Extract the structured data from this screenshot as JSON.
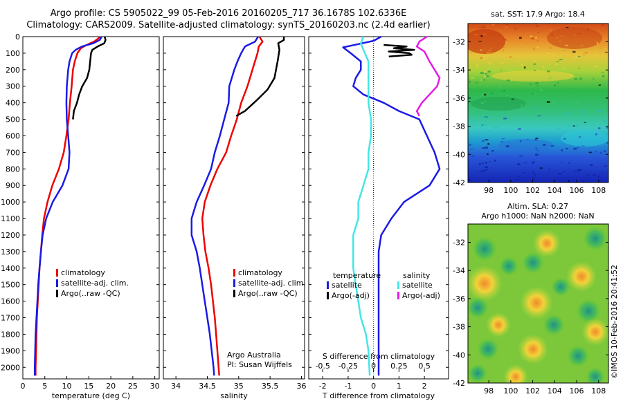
{
  "header": {
    "line1": "Argo profile: CS 5905022_99 05-Feb-2016 20160205_717 36.1678S 102.6336E",
    "line2": "Climatology: CARS2009. Satellite-adjusted climatology: synTS_20160203.nc (2.4d earlier)"
  },
  "colors": {
    "climatology": "#ee0000",
    "satellite": "#1a1ae6",
    "argo": "#000000",
    "salinity_diff": "#44e6e6",
    "salinity_argo_diff": "#e61ae6"
  },
  "chart_data": [
    {
      "id": "temperature",
      "type": "line",
      "xlabel": "temperature (deg C)",
      "xlim": [
        0,
        31
      ],
      "xticks": [
        "0",
        "5",
        "10",
        "15",
        "20",
        "25",
        "30"
      ],
      "ylim": [
        0,
        2070
      ],
      "yticks": [
        "0",
        "100",
        "200",
        "300",
        "400",
        "500",
        "600",
        "700",
        "800",
        "900",
        "1000",
        "1100",
        "1200",
        "1300",
        "1400",
        "1500",
        "1600",
        "1700",
        "1800",
        "1900",
        "2000"
      ],
      "legend": [
        "climatology",
        "satellite-adj. clim.",
        "Argo(..raw -QC)"
      ],
      "series": [
        {
          "name": "climatology",
          "color": "#ee0000",
          "points": [
            [
              17.6,
              0
            ],
            [
              17.2,
              10
            ],
            [
              16.2,
              30
            ],
            [
              14.5,
              50
            ],
            [
              13.2,
              70
            ],
            [
              12.4,
              100
            ],
            [
              11.8,
              150
            ],
            [
              11.4,
              200
            ],
            [
              11.1,
              300
            ],
            [
              10.7,
              400
            ],
            [
              10.4,
              500
            ],
            [
              9.9,
              600
            ],
            [
              9.3,
              700
            ],
            [
              8.2,
              800
            ],
            [
              6.7,
              900
            ],
            [
              5.6,
              1000
            ],
            [
              4.8,
              1100
            ],
            [
              4.4,
              1200
            ],
            [
              4.1,
              1300
            ],
            [
              3.8,
              1400
            ],
            [
              3.6,
              1500
            ],
            [
              3.4,
              1600
            ],
            [
              3.2,
              1700
            ],
            [
              3.1,
              1800
            ],
            [
              3.0,
              1900
            ],
            [
              2.9,
              2000
            ],
            [
              2.9,
              2050
            ]
          ]
        },
        {
          "name": "satellite-adj. clim.",
          "color": "#1a1ae6",
          "points": [
            [
              17.9,
              0
            ],
            [
              17.5,
              20
            ],
            [
              16.0,
              40
            ],
            [
              13.4,
              60
            ],
            [
              12.0,
              80
            ],
            [
              11.2,
              100
            ],
            [
              10.6,
              150
            ],
            [
              10.3,
              200
            ],
            [
              10.0,
              300
            ],
            [
              9.9,
              400
            ],
            [
              10.0,
              500
            ],
            [
              10.3,
              600
            ],
            [
              10.6,
              700
            ],
            [
              10.4,
              800
            ],
            [
              9.0,
              900
            ],
            [
              6.8,
              1000
            ],
            [
              5.3,
              1100
            ],
            [
              4.5,
              1200
            ],
            [
              4.1,
              1300
            ],
            [
              3.8,
              1400
            ],
            [
              3.5,
              1500
            ],
            [
              3.3,
              1600
            ],
            [
              3.1,
              1700
            ],
            [
              2.9,
              1800
            ],
            [
              2.8,
              1900
            ],
            [
              2.7,
              2000
            ],
            [
              2.7,
              2050
            ]
          ]
        },
        {
          "name": "Argo(..raw -QC)",
          "color": "#000000",
          "points": [
            [
              18.6,
              0
            ],
            [
              18.8,
              20
            ],
            [
              18.5,
              40
            ],
            [
              17.0,
              60
            ],
            [
              15.8,
              80
            ],
            [
              15.5,
              100
            ],
            [
              15.1,
              200
            ],
            [
              14.6,
              250
            ],
            [
              13.5,
              300
            ],
            [
              12.8,
              350
            ],
            [
              12.3,
              400
            ],
            [
              11.6,
              450
            ],
            [
              11.4,
              500
            ]
          ]
        }
      ]
    },
    {
      "id": "salinity",
      "type": "line",
      "xlabel": "salinity",
      "xlim": [
        33.8,
        36.05
      ],
      "xticks": [
        "34",
        "34.5",
        "35",
        "35.5",
        "36"
      ],
      "ylim": [
        0,
        2070
      ],
      "legend": [
        "climatology",
        "satellite-adj. clim.",
        "Argo(..raw -QC)"
      ],
      "annotation": [
        "Argo Australia",
        "PI: Susan Wijffels"
      ],
      "series": [
        {
          "name": "climatology",
          "color": "#ee0000",
          "points": [
            [
              35.33,
              0
            ],
            [
              35.38,
              30
            ],
            [
              35.32,
              60
            ],
            [
              35.3,
              100
            ],
            [
              35.22,
              200
            ],
            [
              35.14,
              300
            ],
            [
              35.04,
              400
            ],
            [
              34.97,
              500
            ],
            [
              34.88,
              600
            ],
            [
              34.8,
              700
            ],
            [
              34.66,
              800
            ],
            [
              34.55,
              900
            ],
            [
              34.46,
              1000
            ],
            [
              34.42,
              1100
            ],
            [
              34.44,
              1200
            ],
            [
              34.47,
              1300
            ],
            [
              34.52,
              1400
            ],
            [
              34.56,
              1500
            ],
            [
              34.59,
              1600
            ],
            [
              34.62,
              1700
            ],
            [
              34.64,
              1800
            ],
            [
              34.66,
              1900
            ],
            [
              34.68,
              2000
            ],
            [
              34.69,
              2050
            ]
          ]
        },
        {
          "name": "satellite-adj. clim.",
          "color": "#1a1ae6",
          "points": [
            [
              35.31,
              0
            ],
            [
              35.26,
              30
            ],
            [
              35.1,
              60
            ],
            [
              35.04,
              100
            ],
            [
              34.98,
              150
            ],
            [
              34.93,
              200
            ],
            [
              34.85,
              300
            ],
            [
              34.84,
              400
            ],
            [
              34.77,
              500
            ],
            [
              34.7,
              600
            ],
            [
              34.62,
              700
            ],
            [
              34.56,
              800
            ],
            [
              34.45,
              900
            ],
            [
              34.33,
              1000
            ],
            [
              34.25,
              1100
            ],
            [
              34.25,
              1200
            ],
            [
              34.33,
              1300
            ],
            [
              34.38,
              1400
            ],
            [
              34.42,
              1500
            ],
            [
              34.46,
              1600
            ],
            [
              34.5,
              1700
            ],
            [
              34.54,
              1800
            ],
            [
              34.57,
              1900
            ],
            [
              34.6,
              2000
            ],
            [
              34.61,
              2050
            ]
          ]
        },
        {
          "name": "Argo(..raw -QC)",
          "color": "#000000",
          "points": [
            [
              35.72,
              0
            ],
            [
              35.72,
              20
            ],
            [
              35.63,
              40
            ],
            [
              35.65,
              80
            ],
            [
              35.62,
              150
            ],
            [
              35.57,
              250
            ],
            [
              35.46,
              320
            ],
            [
              35.3,
              380
            ],
            [
              35.1,
              450
            ],
            [
              34.96,
              480
            ]
          ]
        }
      ]
    },
    {
      "id": "differences",
      "type": "line",
      "xlabel": "T difference from climatology",
      "xlim": [
        -2.55,
        2.95
      ],
      "xticks": [
        "-2",
        "-1",
        "0",
        "1",
        "2"
      ],
      "top_label": "S difference from climatology",
      "top_ticks": [
        "-0.5",
        "-0.25",
        "0",
        "0.25",
        "0.5"
      ],
      "ylim": [
        0,
        2070
      ],
      "legend": {
        "temperature_header": "temperature",
        "salinity_header": "salinity",
        "entries": [
          "satellite",
          "Argo(-adj)",
          "satellite",
          "Argo(-adj)"
        ]
      },
      "series": [
        {
          "name": "satellite",
          "group": "temperature",
          "color": "#1a1ae6",
          "points": [
            [
              0.3,
              0
            ],
            [
              0.0,
              25
            ],
            [
              -0.6,
              45
            ],
            [
              -1.2,
              65
            ],
            [
              -0.9,
              100
            ],
            [
              -0.5,
              150
            ],
            [
              -0.5,
              200
            ],
            [
              -0.7,
              250
            ],
            [
              -0.8,
              300
            ],
            [
              -0.4,
              350
            ],
            [
              0.4,
              400
            ],
            [
              1.0,
              450
            ],
            [
              1.8,
              500
            ],
            [
              2.1,
              600
            ],
            [
              2.4,
              700
            ],
            [
              2.6,
              800
            ],
            [
              2.2,
              900
            ],
            [
              1.2,
              1000
            ],
            [
              0.7,
              1100
            ],
            [
              0.3,
              1200
            ],
            [
              0.2,
              1300
            ],
            [
              0.2,
              1500
            ],
            [
              0.2,
              1700
            ],
            [
              0.2,
              1900
            ],
            [
              0.2,
              2050
            ]
          ]
        },
        {
          "name": "satellite",
          "group": "salinity",
          "color": "#44e6e6",
          "points": [
            [
              -0.4,
              0
            ],
            [
              -0.5,
              40
            ],
            [
              -0.4,
              80
            ],
            [
              -0.2,
              150
            ],
            [
              -0.2,
              200
            ],
            [
              -0.2,
              300
            ],
            [
              -0.2,
              400
            ],
            [
              -0.1,
              500
            ],
            [
              -0.1,
              600
            ],
            [
              -0.2,
              700
            ],
            [
              -0.2,
              800
            ],
            [
              -0.4,
              900
            ],
            [
              -0.6,
              1000
            ],
            [
              -0.6,
              1100
            ],
            [
              -0.8,
              1200
            ],
            [
              -0.8,
              1300
            ],
            [
              -0.8,
              1400
            ],
            [
              -0.7,
              1500
            ],
            [
              -0.6,
              1600
            ],
            [
              -0.5,
              1700
            ],
            [
              -0.3,
              1800
            ],
            [
              -0.2,
              1900
            ],
            [
              -0.15,
              2050
            ]
          ]
        },
        {
          "name": "Argo(-adj)",
          "group": "temperature",
          "color": "#000000",
          "points": [
            [
              0.4,
              50
            ],
            [
              1.3,
              60
            ],
            [
              0.8,
              70
            ],
            [
              1.6,
              80
            ],
            [
              0.6,
              90
            ],
            [
              1.4,
              100
            ],
            [
              1.5,
              110
            ],
            [
              0.6,
              120
            ]
          ]
        },
        {
          "name": "Argo(-adj)",
          "group": "salinity",
          "color": "#e61ae6",
          "points": [
            [
              2.1,
              0
            ],
            [
              1.8,
              30
            ],
            [
              1.7,
              60
            ],
            [
              2.0,
              90
            ],
            [
              2.2,
              150
            ],
            [
              2.4,
              200
            ],
            [
              2.6,
              250
            ],
            [
              2.5,
              300
            ],
            [
              2.2,
              350
            ],
            [
              1.9,
              400
            ],
            [
              1.7,
              450
            ],
            [
              1.8,
              480
            ]
          ]
        }
      ]
    }
  ],
  "maps": {
    "sst": {
      "title": "sat. SST: 17.9  Argo: 18.4",
      "lat_ticks": [
        "-32",
        "-34",
        "-36",
        "-38",
        "-40",
        "-42"
      ],
      "lon_ticks": [
        "98",
        "100",
        "102",
        "104",
        "106",
        "108"
      ]
    },
    "sla": {
      "title_line1": "Altim. SLA: 0.27",
      "title_line2": "Argo h1000: NaN h2000: NaN",
      "lat_ticks": [
        "-32",
        "-34",
        "-36",
        "-38",
        "-40",
        "-42"
      ],
      "lon_ticks": [
        "98",
        "100",
        "102",
        "104",
        "106",
        "108"
      ]
    }
  },
  "footer": {
    "stamp": "©IMOS 10-Feb-2016 20:41:52"
  }
}
